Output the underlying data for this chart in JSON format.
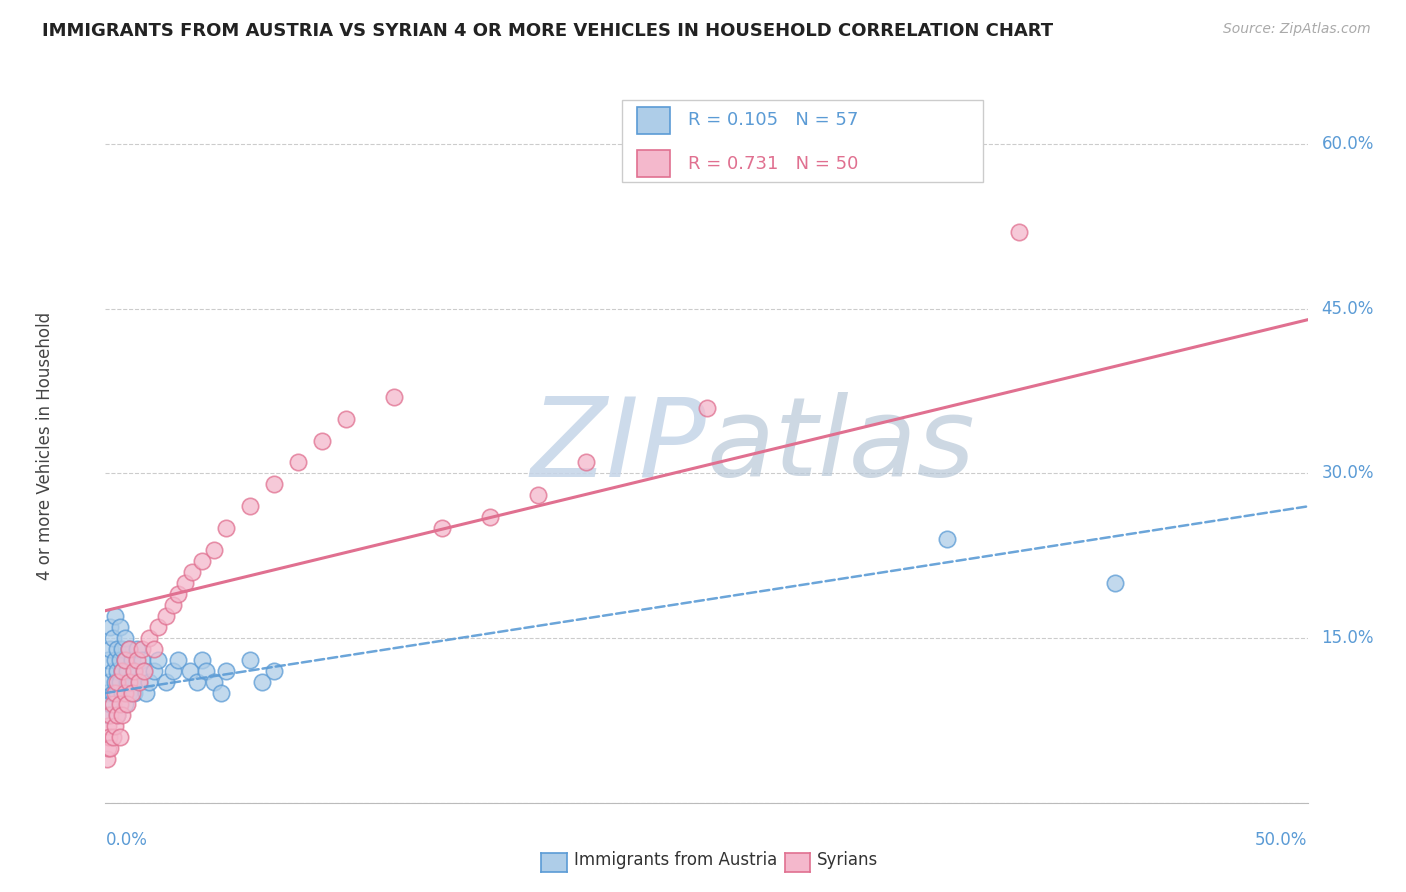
{
  "title": "IMMIGRANTS FROM AUSTRIA VS SYRIAN 4 OR MORE VEHICLES IN HOUSEHOLD CORRELATION CHART",
  "source": "Source: ZipAtlas.com",
  "ylabel": "4 or more Vehicles in Household",
  "legend_austria": "Immigrants from Austria",
  "legend_syrians": "Syrians",
  "austria_R": "0.105",
  "austria_N": "57",
  "syrian_R": "0.731",
  "syrian_N": "50",
  "color_austria_fill": "#aecde8",
  "color_austria_edge": "#5b9bd5",
  "color_syrian_fill": "#f4b8cc",
  "color_syrian_edge": "#e07090",
  "color_austria_line": "#5b9bd5",
  "color_syrian_line": "#e07090",
  "watermark_text": "ZIPatlas",
  "watermark_color": "#d0dce8",
  "xlim": [
    0.0,
    0.5
  ],
  "ylim": [
    0.0,
    0.65
  ],
  "ytick_positions": [
    0.0,
    0.15,
    0.3,
    0.45,
    0.6
  ],
  "ytick_labels": [
    "",
    "15.0%",
    "30.0%",
    "45.0%",
    "60.0%"
  ],
  "xtick_left_label": "0.0%",
  "xtick_right_label": "50.0%",
  "austria_x": [
    0.0005,
    0.001,
    0.001,
    0.0015,
    0.002,
    0.002,
    0.002,
    0.003,
    0.003,
    0.003,
    0.004,
    0.004,
    0.004,
    0.005,
    0.005,
    0.005,
    0.005,
    0.006,
    0.006,
    0.006,
    0.007,
    0.007,
    0.007,
    0.008,
    0.008,
    0.008,
    0.009,
    0.009,
    0.01,
    0.01,
    0.011,
    0.011,
    0.012,
    0.012,
    0.013,
    0.014,
    0.015,
    0.016,
    0.017,
    0.018,
    0.02,
    0.022,
    0.025,
    0.028,
    0.03,
    0.035,
    0.038,
    0.04,
    0.042,
    0.045,
    0.048,
    0.05,
    0.06,
    0.065,
    0.07,
    0.35,
    0.42
  ],
  "austria_y": [
    0.1,
    0.13,
    0.08,
    0.11,
    0.14,
    0.09,
    0.16,
    0.12,
    0.1,
    0.15,
    0.13,
    0.11,
    0.17,
    0.1,
    0.14,
    0.12,
    0.08,
    0.13,
    0.11,
    0.16,
    0.12,
    0.1,
    0.14,
    0.13,
    0.09,
    0.15,
    0.11,
    0.12,
    0.1,
    0.14,
    0.13,
    0.11,
    0.12,
    0.1,
    0.14,
    0.11,
    0.13,
    0.12,
    0.1,
    0.11,
    0.12,
    0.13,
    0.11,
    0.12,
    0.13,
    0.12,
    0.11,
    0.13,
    0.12,
    0.11,
    0.1,
    0.12,
    0.13,
    0.11,
    0.12,
    0.24,
    0.2
  ],
  "syrian_x": [
    0.0005,
    0.001,
    0.001,
    0.0015,
    0.002,
    0.002,
    0.003,
    0.003,
    0.004,
    0.004,
    0.005,
    0.005,
    0.006,
    0.006,
    0.007,
    0.007,
    0.008,
    0.008,
    0.009,
    0.01,
    0.01,
    0.011,
    0.012,
    0.013,
    0.014,
    0.015,
    0.016,
    0.018,
    0.02,
    0.022,
    0.025,
    0.028,
    0.03,
    0.033,
    0.036,
    0.04,
    0.045,
    0.05,
    0.06,
    0.07,
    0.08,
    0.09,
    0.1,
    0.12,
    0.14,
    0.16,
    0.18,
    0.2,
    0.25,
    0.38
  ],
  "syrian_y": [
    0.04,
    0.05,
    0.07,
    0.06,
    0.08,
    0.05,
    0.09,
    0.06,
    0.1,
    0.07,
    0.08,
    0.11,
    0.09,
    0.06,
    0.12,
    0.08,
    0.1,
    0.13,
    0.09,
    0.11,
    0.14,
    0.1,
    0.12,
    0.13,
    0.11,
    0.14,
    0.12,
    0.15,
    0.14,
    0.16,
    0.17,
    0.18,
    0.19,
    0.2,
    0.21,
    0.22,
    0.23,
    0.25,
    0.27,
    0.29,
    0.31,
    0.33,
    0.35,
    0.37,
    0.25,
    0.26,
    0.28,
    0.31,
    0.36,
    0.52
  ]
}
